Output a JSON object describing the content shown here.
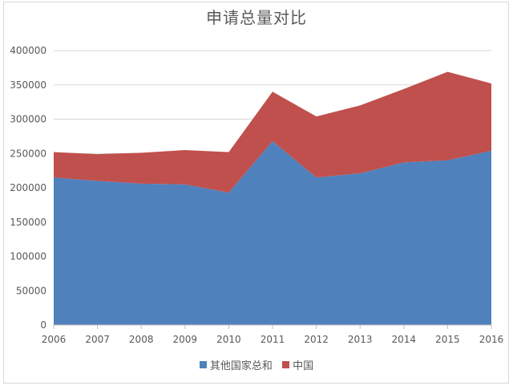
{
  "chart_data": {
    "type": "area",
    "stacked": true,
    "title": "申请总量对比",
    "xlabel": "",
    "ylabel": "",
    "x": [
      "2006",
      "2007",
      "2008",
      "2009",
      "2010",
      "2011",
      "2012",
      "2013",
      "2014",
      "2015",
      "2016"
    ],
    "ylim": [
      0,
      400000
    ],
    "yticks": [
      0,
      50000,
      100000,
      150000,
      200000,
      250000,
      300000,
      350000,
      400000
    ],
    "grid": true,
    "legend_position": "bottom",
    "series": [
      {
        "name": "其他国家总和",
        "color": "#4f81bd",
        "values": [
          215000,
          210000,
          206000,
          205000,
          193000,
          268000,
          215000,
          221000,
          237000,
          240000,
          254000
        ]
      },
      {
        "name": "中国",
        "color": "#c0504d",
        "values": [
          37000,
          39000,
          45000,
          50000,
          59000,
          72000,
          89000,
          99000,
          107000,
          129000,
          98000
        ]
      }
    ]
  }
}
